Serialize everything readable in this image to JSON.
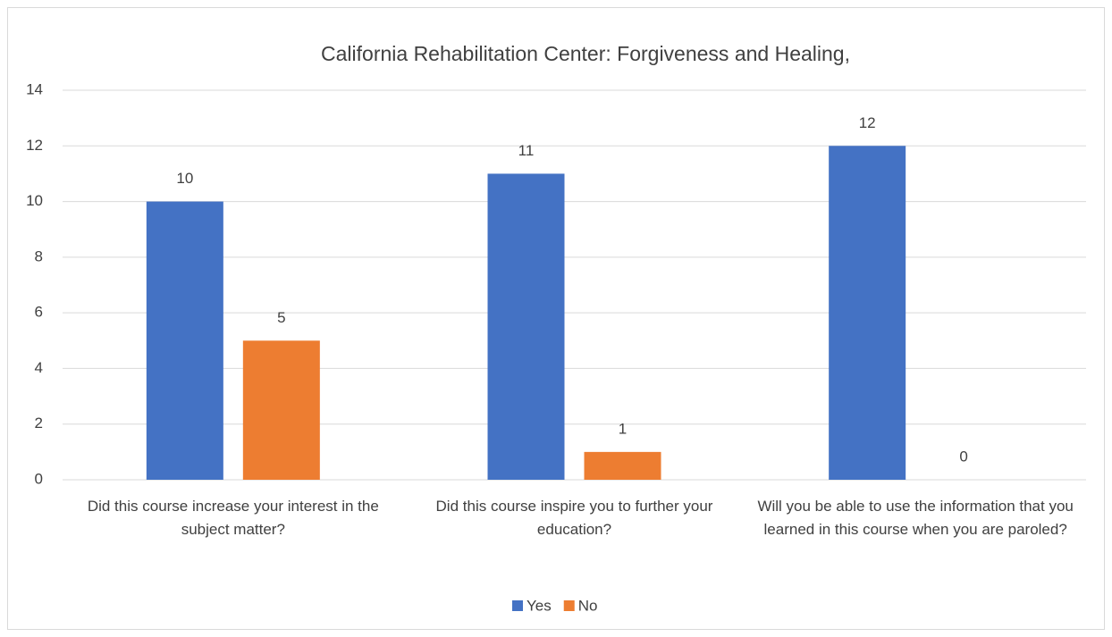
{
  "chart_data": {
    "type": "bar",
    "title": "California Rehabilitation Center: Forgiveness and Healing,",
    "categories": [
      "Did this course increase your interest in the subject matter?",
      "Did this course inspire you to further your education?",
      "Will you be able to use the information that you learned in this course when you are paroled?"
    ],
    "series": [
      {
        "name": "Yes",
        "color": "#4472c4",
        "values": [
          10,
          11,
          12
        ]
      },
      {
        "name": "No",
        "color": "#ed7d31",
        "values": [
          5,
          1,
          0
        ]
      }
    ],
    "ylim": [
      0,
      14
    ],
    "yticks": [
      0,
      2,
      4,
      6,
      8,
      10,
      12,
      14
    ],
    "grid": true,
    "legend": "bottom"
  }
}
